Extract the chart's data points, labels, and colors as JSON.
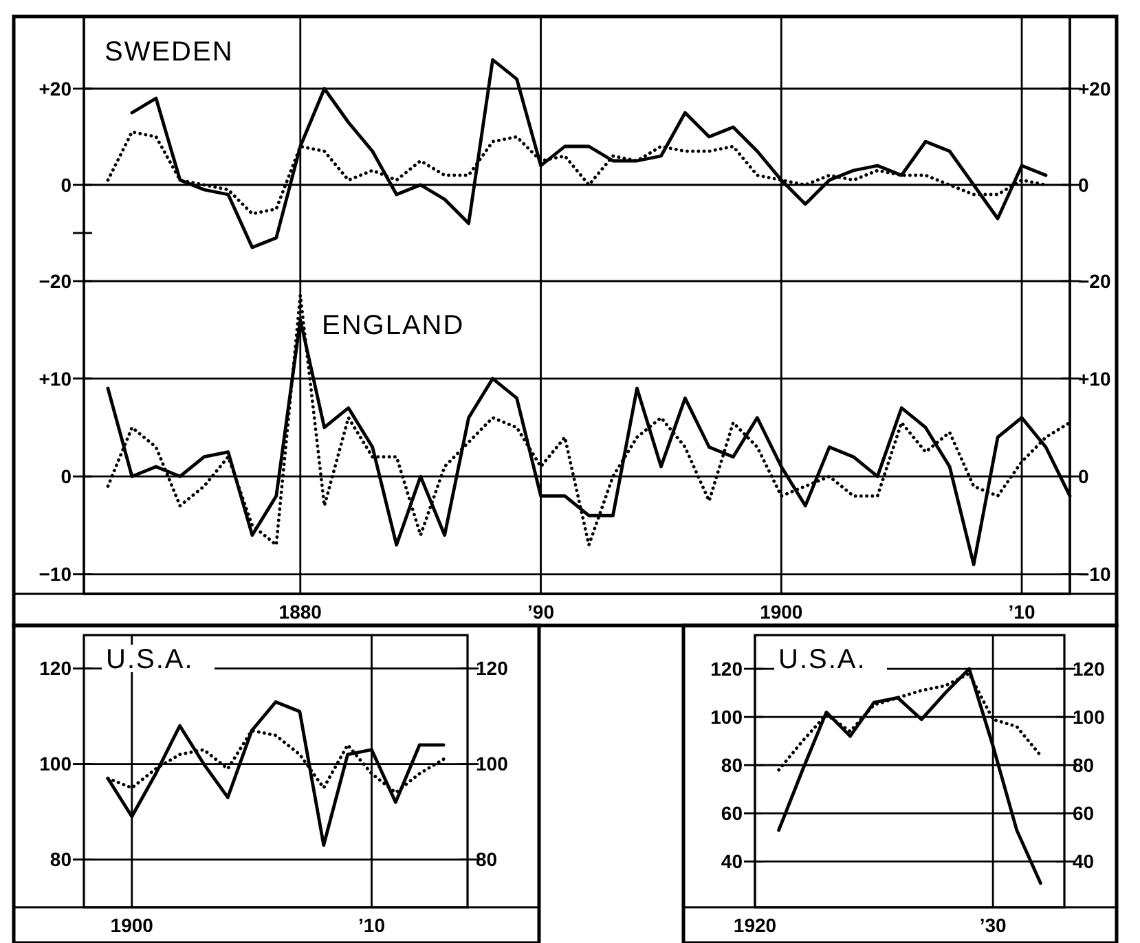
{
  "chart_data": [
    {
      "type": "line",
      "title": "SWEDEN",
      "x": [
        1872,
        1873,
        1874,
        1875,
        1876,
        1877,
        1878,
        1879,
        1880,
        1881,
        1882,
        1883,
        1884,
        1885,
        1886,
        1887,
        1888,
        1889,
        1890,
        1891,
        1892,
        1893,
        1894,
        1895,
        1896,
        1897,
        1898,
        1899,
        1900,
        1901,
        1902,
        1903,
        1904,
        1905,
        1906,
        1907,
        1908,
        1909,
        1910,
        1911
      ],
      "series": [
        {
          "color": "#000000",
          "line_style": "solid",
          "values": [
            null,
            15,
            18,
            1,
            -1,
            -2,
            -13,
            -11,
            8,
            20,
            13,
            7,
            -2,
            0,
            -3,
            -8,
            26,
            22,
            4,
            8,
            8,
            5,
            5,
            6,
            15,
            10,
            12,
            7,
            1,
            -4,
            1,
            3,
            4,
            2,
            9,
            7,
            0,
            -7,
            4,
            2
          ]
        },
        {
          "color": "#000000",
          "line_style": "dotted",
          "values": [
            1,
            11,
            10,
            1,
            0,
            -1,
            -6,
            -5,
            8,
            7,
            1,
            3,
            1,
            5,
            2,
            2,
            9,
            10,
            5,
            6,
            0,
            6,
            5,
            8,
            7,
            7,
            8,
            2,
            1,
            0,
            2,
            1,
            3,
            2,
            2,
            0,
            -2,
            -2,
            1,
            0
          ]
        }
      ],
      "xlim": [
        1871,
        1912
      ],
      "ylim": [
        -85,
        35
      ],
      "yticks": [
        {
          "value": 20,
          "label": "+20"
        },
        0,
        {
          "value": -10,
          "label": null
        },
        {
          "value": -20,
          "label": "−20"
        }
      ],
      "y2lim": [
        -85,
        35
      ],
      "y2ticks": [
        {
          "value": 20,
          "label": "+20"
        },
        0,
        {
          "value": -20,
          "label": "−20"
        }
      ],
      "grid": "y",
      "tick_labels": "y"
    },
    {
      "type": "line",
      "title": "ENGLAND",
      "x": [
        1872,
        1873,
        1874,
        1875,
        1876,
        1877,
        1878,
        1879,
        1880,
        1881,
        1882,
        1883,
        1884,
        1885,
        1886,
        1887,
        1888,
        1889,
        1890,
        1891,
        1892,
        1893,
        1894,
        1895,
        1896,
        1897,
        1898,
        1899,
        1900,
        1901,
        1902,
        1903,
        1904,
        1905,
        1906,
        1907,
        1908,
        1909,
        1910,
        1911,
        1912
      ],
      "series": [
        {
          "color": "#000000",
          "line_style": "solid",
          "values": [
            9,
            0,
            1,
            0,
            2,
            2.5,
            -6,
            -2,
            16,
            5,
            7,
            3,
            -7,
            0,
            -6,
            6,
            10,
            8,
            -2,
            -2,
            -4,
            -4,
            9,
            1,
            8,
            3,
            2,
            6,
            1,
            -3,
            3,
            2,
            0,
            7,
            5,
            1,
            -9,
            4,
            6,
            3,
            -2
          ]
        },
        {
          "color": "#000000",
          "line_style": "dotted",
          "values": [
            -1,
            5,
            3,
            -3,
            -1,
            2,
            -5,
            -7,
            18.5,
            -3,
            6,
            2,
            2,
            -6,
            1,
            3.5,
            6,
            5,
            1,
            4,
            -7,
            0,
            4,
            6,
            3,
            -2.5,
            5.5,
            3,
            -2,
            -1,
            0,
            -2,
            -2,
            5.5,
            2.5,
            4.5,
            -1,
            -2,
            1.5,
            4,
            5.5
          ]
        }
      ],
      "xlim": [
        1871,
        1912
      ],
      "xticks": [
        1880,
        {
          "value": 1890,
          "label": "’90"
        },
        1900,
        {
          "value": 1910,
          "label": "’10"
        }
      ],
      "ylim": [
        -12,
        47
      ],
      "yticks": [
        {
          "value": 10,
          "label": "+10"
        },
        0,
        {
          "value": -10,
          "label": "−10"
        }
      ],
      "y2lim": [
        -12,
        47
      ],
      "y2ticks": [
        {
          "value": 10,
          "label": "+10"
        },
        0,
        {
          "value": -10,
          "label": "−10"
        }
      ],
      "grid": true
    },
    {
      "type": "line",
      "title": "U.S.A.",
      "x": [
        1899,
        1900,
        1901,
        1902,
        1903,
        1904,
        1905,
        1906,
        1907,
        1908,
        1909,
        1910,
        1911,
        1912,
        1913
      ],
      "series": [
        {
          "color": "#000000",
          "line_style": "solid",
          "values": [
            97,
            89,
            98,
            108,
            100,
            93,
            107,
            113,
            111,
            83,
            102,
            103,
            92,
            104,
            104
          ]
        },
        {
          "color": "#000000",
          "line_style": "dotted",
          "values": [
            97,
            95,
            99,
            102,
            103,
            99,
            107,
            106,
            102,
            95,
            104,
            98,
            94,
            98,
            101
          ]
        }
      ],
      "xlim": [
        1898,
        1914
      ],
      "xticks": [
        1900,
        {
          "value": 1910,
          "label": "’10"
        }
      ],
      "ylim": [
        70,
        127
      ],
      "yticks": [
        80,
        100,
        120
      ],
      "y2lim": [
        70,
        127
      ],
      "y2ticks": [
        80,
        100,
        120
      ],
      "grid": true
    },
    {
      "type": "line",
      "title": "U.S.A.",
      "x": [
        1921,
        1922,
        1923,
        1924,
        1925,
        1926,
        1927,
        1928,
        1929,
        1930,
        1931,
        1932
      ],
      "series": [
        {
          "color": "#000000",
          "line_style": "solid",
          "values": [
            53,
            78,
            102,
            92,
            106,
            108,
            99,
            110,
            120,
            88,
            53,
            31
          ]
        },
        {
          "color": "#000000",
          "line_style": "dotted",
          "values": [
            78,
            90,
            101,
            94,
            105,
            108,
            111,
            113,
            118,
            99,
            96,
            84
          ]
        }
      ],
      "xlim": [
        1920,
        1933
      ],
      "xticks": [
        1920,
        {
          "value": 1930,
          "label": "’30"
        }
      ],
      "ylim": [
        21,
        134
      ],
      "yticks": [
        40,
        60,
        80,
        100,
        120
      ],
      "y2lim": [
        21,
        134
      ],
      "y2ticks": [
        40,
        60,
        80,
        100,
        120
      ],
      "grid": true
    }
  ]
}
